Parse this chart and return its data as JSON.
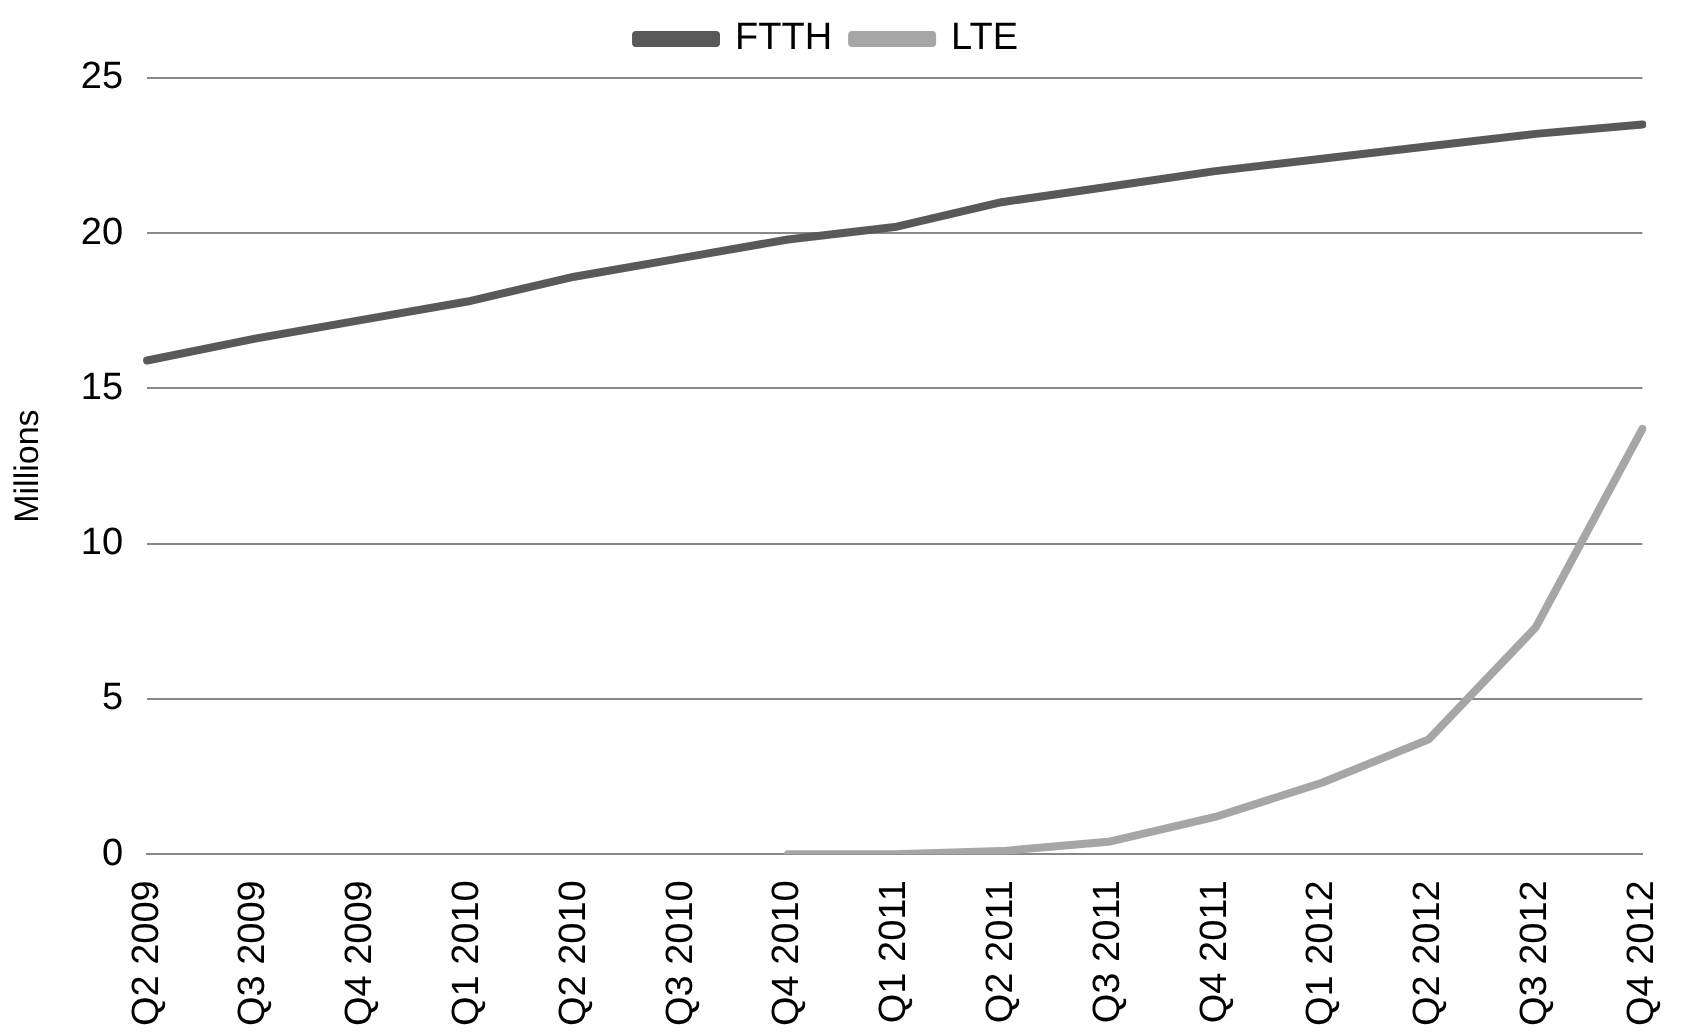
{
  "chart_data": {
    "type": "line",
    "ylabel": "Millions",
    "categories": [
      "Q2 2009",
      "Q3 2009",
      "Q4 2009",
      "Q1 2010",
      "Q2 2010",
      "Q3 2010",
      "Q4 2010",
      "Q1 2011",
      "Q2 2011",
      "Q3 2011",
      "Q4 2011",
      "Q1 2012",
      "Q2 2012",
      "Q3 2012",
      "Q4 2012"
    ],
    "series": [
      {
        "name": "FTTH",
        "color": "#595959",
        "values": [
          15.9,
          16.6,
          17.2,
          17.8,
          18.6,
          19.2,
          19.8,
          20.2,
          21.0,
          21.5,
          22.0,
          22.4,
          22.8,
          23.2,
          23.5
        ]
      },
      {
        "name": "LTE",
        "color": "#a6a6a6",
        "values": [
          null,
          null,
          null,
          null,
          null,
          null,
          0,
          0,
          0.1,
          0.4,
          1.2,
          2.3,
          3.7,
          7.3,
          13.7
        ]
      }
    ],
    "ylim": [
      0,
      25
    ],
    "yticks": [
      0,
      5,
      10,
      15,
      20,
      25
    ],
    "grid": "y",
    "legend": "top",
    "marker": "none",
    "line_style": "solid"
  }
}
